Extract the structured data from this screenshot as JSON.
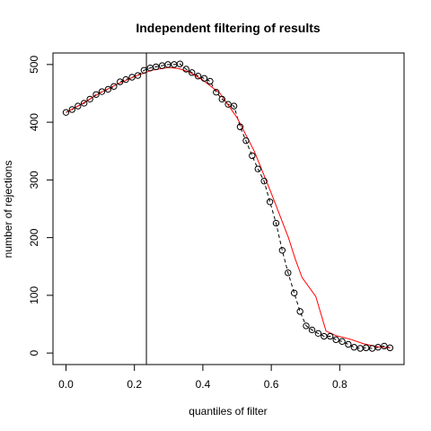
{
  "chart_data": {
    "type": "scatter",
    "title": "Independent filtering of results",
    "xlabel": "quantiles of filter",
    "ylabel": "number of rejections",
    "xlim": [
      -0.038,
      0.988
    ],
    "ylim": [
      -20,
      520
    ],
    "x_ticks": [
      0.0,
      0.2,
      0.4,
      0.6,
      0.8
    ],
    "x_tick_labels": [
      "0.0",
      "0.2",
      "0.4",
      "0.6",
      "0.8"
    ],
    "y_ticks": [
      0,
      100,
      200,
      300,
      400,
      500
    ],
    "y_tick_labels": [
      "0",
      "100",
      "200",
      "300",
      "400",
      "500"
    ],
    "threshold_x": 0.235,
    "grid": false,
    "legend": "none",
    "colors": {
      "points": "#000000",
      "connecting_line": "#000000",
      "fit_line": "#ff0000",
      "threshold_line": "#000000"
    },
    "series": [
      {
        "style": "points-with-dashed-line",
        "x": [
          0.0,
          0.018,
          0.035,
          0.053,
          0.07,
          0.088,
          0.105,
          0.123,
          0.14,
          0.158,
          0.175,
          0.193,
          0.21,
          0.228,
          0.246,
          0.263,
          0.281,
          0.298,
          0.316,
          0.333,
          0.351,
          0.368,
          0.386,
          0.404,
          0.421,
          0.439,
          0.456,
          0.474,
          0.491,
          0.509,
          0.526,
          0.544,
          0.561,
          0.579,
          0.596,
          0.614,
          0.632,
          0.649,
          0.667,
          0.684,
          0.702,
          0.719,
          0.737,
          0.754,
          0.772,
          0.789,
          0.807,
          0.825,
          0.842,
          0.86,
          0.877,
          0.895,
          0.912,
          0.93,
          0.947
        ],
        "y": [
          417,
          422,
          428,
          433,
          440,
          448,
          453,
          457,
          462,
          470,
          474,
          478,
          481,
          490,
          494,
          496,
          498,
          500,
          500,
          501,
          492,
          486,
          480,
          476,
          471,
          452,
          440,
          431,
          428,
          392,
          368,
          342,
          319,
          298,
          262,
          225,
          178,
          139,
          104,
          72,
          47,
          40,
          34,
          29,
          29,
          23,
          20,
          15,
          10,
          8,
          9,
          8,
          10,
          12,
          9
        ]
      },
      {
        "style": "smoothed-line",
        "x": [
          0.0,
          0.05,
          0.1,
          0.15,
          0.2,
          0.25,
          0.3,
          0.33,
          0.36,
          0.4,
          0.45,
          0.5,
          0.55,
          0.6,
          0.65,
          0.67,
          0.69,
          0.73,
          0.76,
          0.79,
          0.83,
          0.87,
          0.91,
          0.947
        ],
        "y": [
          417,
          433,
          451,
          466,
          479,
          490,
          495,
          493,
          487,
          473,
          450,
          408,
          350,
          277,
          200,
          163,
          131,
          98,
          38,
          30,
          24,
          16,
          11,
          9
        ]
      }
    ]
  }
}
